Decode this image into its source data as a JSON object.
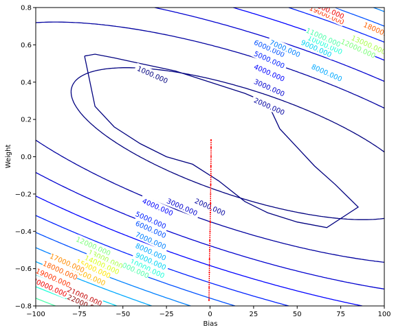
{
  "chart_data": {
    "type": "contour",
    "xlabel": "Bias",
    "ylabel": "Weight",
    "xlim": [
      -100,
      100
    ],
    "ylim": [
      -0.8,
      0.8
    ],
    "x_ticks": [
      "−100",
      "−75",
      "−50",
      "−25",
      "0",
      "25",
      "50",
      "75",
      "100"
    ],
    "y_ticks": [
      "−0.8",
      "−0.6",
      "−0.4",
      "−0.2",
      "0.0",
      "0.2",
      "0.4",
      "0.6",
      "0.8"
    ],
    "grid": false,
    "colormap": "jet",
    "contour_levels": [
      1000,
      2000,
      3000,
      4000,
      5000,
      6000,
      7000,
      8000,
      9000,
      10000,
      11000,
      12000,
      13000,
      14000,
      15000,
      16000,
      17000,
      18000,
      19000,
      20000,
      21000,
      22000
    ],
    "level_labels": [
      "1000.000",
      "2000.000",
      "3000.000",
      "4000.000",
      "5000.000",
      "6000.000",
      "7000.000",
      "8000.000",
      "9000.000",
      "10000.000",
      "11000.000",
      "12000.000",
      "13000.000",
      "14000.000",
      "15000.000",
      "16000.000",
      "17000.000",
      "18000.000",
      "19000.000",
      "20000.000",
      "21000.000",
      "22000.000"
    ],
    "level_colors": [
      "#00007f",
      "#00009f",
      "#0000cf",
      "#0000ff",
      "#0020ff",
      "#0050ff",
      "#0080ff",
      "#00a8ff",
      "#00d4f4",
      "#1effd9",
      "#4cffaa",
      "#7cff7a",
      "#aaff4c",
      "#d9ff1e",
      "#ffe600",
      "#ffb900",
      "#ff8c00",
      "#ff5f00",
      "#ff3200",
      "#f00000",
      "#c20000",
      "#8b0000"
    ],
    "minimum_contour": [
      [
        -72,
        0.54
      ],
      [
        -66,
        0.55
      ],
      [
        -55,
        0.53
      ],
      [
        -40,
        0.5
      ],
      [
        -20,
        0.46
      ],
      [
        0,
        0.4
      ],
      [
        20,
        0.34
      ],
      [
        30,
        0.3
      ],
      [
        35,
        0.25
      ],
      [
        40,
        0.15
      ],
      [
        50,
        0.05
      ],
      [
        60,
        -0.05
      ],
      [
        72,
        -0.15
      ],
      [
        85,
        -0.27
      ],
      [
        67,
        -0.38
      ],
      [
        50,
        -0.35
      ],
      [
        33,
        -0.3
      ],
      [
        20,
        -0.24
      ],
      [
        5,
        -0.13
      ],
      [
        -10,
        -0.04
      ],
      [
        -25,
        0.0
      ],
      [
        -40,
        0.07
      ],
      [
        -55,
        0.16
      ],
      [
        -66,
        0.27
      ],
      [
        -72,
        0.54
      ]
    ],
    "contour_labels": [
      {
        "text": "1000.000",
        "x": -33,
        "y": 0.44
      },
      {
        "text": "2000.000",
        "x": 34,
        "y": 0.27
      },
      {
        "text": "3000.000",
        "x": 34,
        "y": 0.37
      },
      {
        "text": "4000.000",
        "x": 34,
        "y": 0.45
      },
      {
        "text": "5000.000",
        "x": 34,
        "y": 0.52
      },
      {
        "text": "6000.000",
        "x": 34,
        "y": 0.58
      },
      {
        "text": "7000.000",
        "x": 43,
        "y": 0.58
      },
      {
        "text": "8000.000",
        "x": 67,
        "y": 0.45
      },
      {
        "text": "9000.000",
        "x": 61,
        "y": 0.58
      },
      {
        "text": "10000.000",
        "x": 66,
        "y": 0.6
      },
      {
        "text": "11000.000",
        "x": 65,
        "y": 0.64
      },
      {
        "text": "12000.000",
        "x": 85,
        "y": 0.58
      },
      {
        "text": "13000.000",
        "x": 91,
        "y": 0.6
      },
      {
        "text": "18000.000",
        "x": 98,
        "y": 0.67
      },
      {
        "text": "19000.000",
        "x": 67,
        "y": 0.76
      },
      {
        "text": "20000.000",
        "x": 67,
        "y": 0.79
      },
      {
        "text": "2000.000",
        "x": 0,
        "y": -0.27
      },
      {
        "text": "3000.000",
        "x": -16,
        "y": -0.27
      },
      {
        "text": "4000.000",
        "x": -30,
        "y": -0.27
      },
      {
        "text": "5000.000",
        "x": -34,
        "y": -0.34
      },
      {
        "text": "6000.000",
        "x": -34,
        "y": -0.39
      },
      {
        "text": "7000.000",
        "x": -34,
        "y": -0.45
      },
      {
        "text": "8000.000",
        "x": -34,
        "y": -0.51
      },
      {
        "text": "9000.000",
        "x": -34,
        "y": -0.56
      },
      {
        "text": "10000.000",
        "x": -36,
        "y": -0.6
      },
      {
        "text": "11000.000",
        "x": -45,
        "y": -0.6
      },
      {
        "text": "12000.000",
        "x": -67,
        "y": -0.48
      },
      {
        "text": "13000.000",
        "x": -60,
        "y": -0.55
      },
      {
        "text": "14000.000",
        "x": -62,
        "y": -0.58
      },
      {
        "text": "15000.000",
        "x": -67,
        "y": -0.6
      },
      {
        "text": "16000.000",
        "x": -70,
        "y": -0.64
      },
      {
        "text": "17000.000",
        "x": -82,
        "y": -0.57
      },
      {
        "text": "18000.000",
        "x": -86,
        "y": -0.61
      },
      {
        "text": "19000.000",
        "x": -90,
        "y": -0.65
      },
      {
        "text": "20000.000",
        "x": -92,
        "y": -0.7
      },
      {
        "text": "21000.000",
        "x": -72,
        "y": -0.75
      },
      {
        "text": "22000.000",
        "x": -72,
        "y": -0.79
      }
    ],
    "trajectory": {
      "color": "#ff0000",
      "x": [
        0.6,
        0.6,
        0.6,
        0.5,
        0.5,
        0.4,
        0.3,
        0.3,
        0.2,
        0.1,
        0.0,
        -0.1,
        -0.2,
        -0.3,
        -0.4,
        -0.5,
        -0.6
      ],
      "y": [
        0.09,
        0.05,
        0.0,
        -0.05,
        -0.1,
        -0.15,
        -0.2,
        -0.25,
        -0.3,
        -0.35,
        -0.4,
        -0.45,
        -0.5,
        -0.55,
        -0.62,
        -0.7,
        -0.77
      ]
    }
  }
}
